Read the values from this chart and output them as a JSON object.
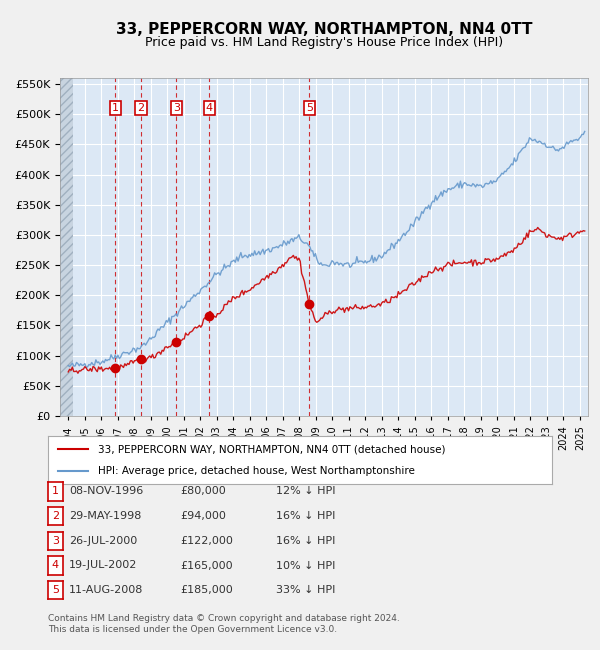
{
  "title": "33, PEPPERCORN WAY, NORTHAMPTON, NN4 0TT",
  "subtitle": "Price paid vs. HM Land Registry's House Price Index (HPI)",
  "background_color": "#e8f0f8",
  "plot_bg_color": "#dce8f5",
  "hatch_color": "#c0c8d8",
  "grid_color": "#ffffff",
  "xlabel": "",
  "ylabel": "",
  "ylim": [
    0,
    560000
  ],
  "yticks": [
    0,
    50000,
    100000,
    150000,
    200000,
    250000,
    300000,
    350000,
    400000,
    450000,
    500000,
    550000
  ],
  "ytick_labels": [
    "£0",
    "£50K",
    "£100K",
    "£150K",
    "£200K",
    "£250K",
    "£300K",
    "£350K",
    "£400K",
    "£450K",
    "£500K",
    "£550K"
  ],
  "xlim_start": 1993.5,
  "xlim_end": 2025.5,
  "sale_dates": [
    1996.86,
    1998.41,
    2000.56,
    2002.55,
    2008.61
  ],
  "sale_prices": [
    80000,
    94000,
    122000,
    165000,
    185000
  ],
  "sale_labels": [
    "1",
    "2",
    "3",
    "4",
    "5"
  ],
  "sale_line_color": "#cc0000",
  "sale_marker_color": "#cc0000",
  "hpi_line_color": "#6699cc",
  "footnote": "Contains HM Land Registry data © Crown copyright and database right 2024.\nThis data is licensed under the Open Government Licence v3.0.",
  "legend_line1": "33, PEPPERCORN WAY, NORTHAMPTON, NN4 0TT (detached house)",
  "legend_line2": "HPI: Average price, detached house, West Northamptonshire",
  "table_rows": [
    [
      "1",
      "08-NOV-1996",
      "£80,000",
      "12% ↓ HPI"
    ],
    [
      "2",
      "29-MAY-1998",
      "£94,000",
      "16% ↓ HPI"
    ],
    [
      "3",
      "26-JUL-2000",
      "£122,000",
      "16% ↓ HPI"
    ],
    [
      "4",
      "19-JUL-2002",
      "£165,000",
      "10% ↓ HPI"
    ],
    [
      "5",
      "11-AUG-2008",
      "£185,000",
      "33% ↓ HPI"
    ]
  ]
}
